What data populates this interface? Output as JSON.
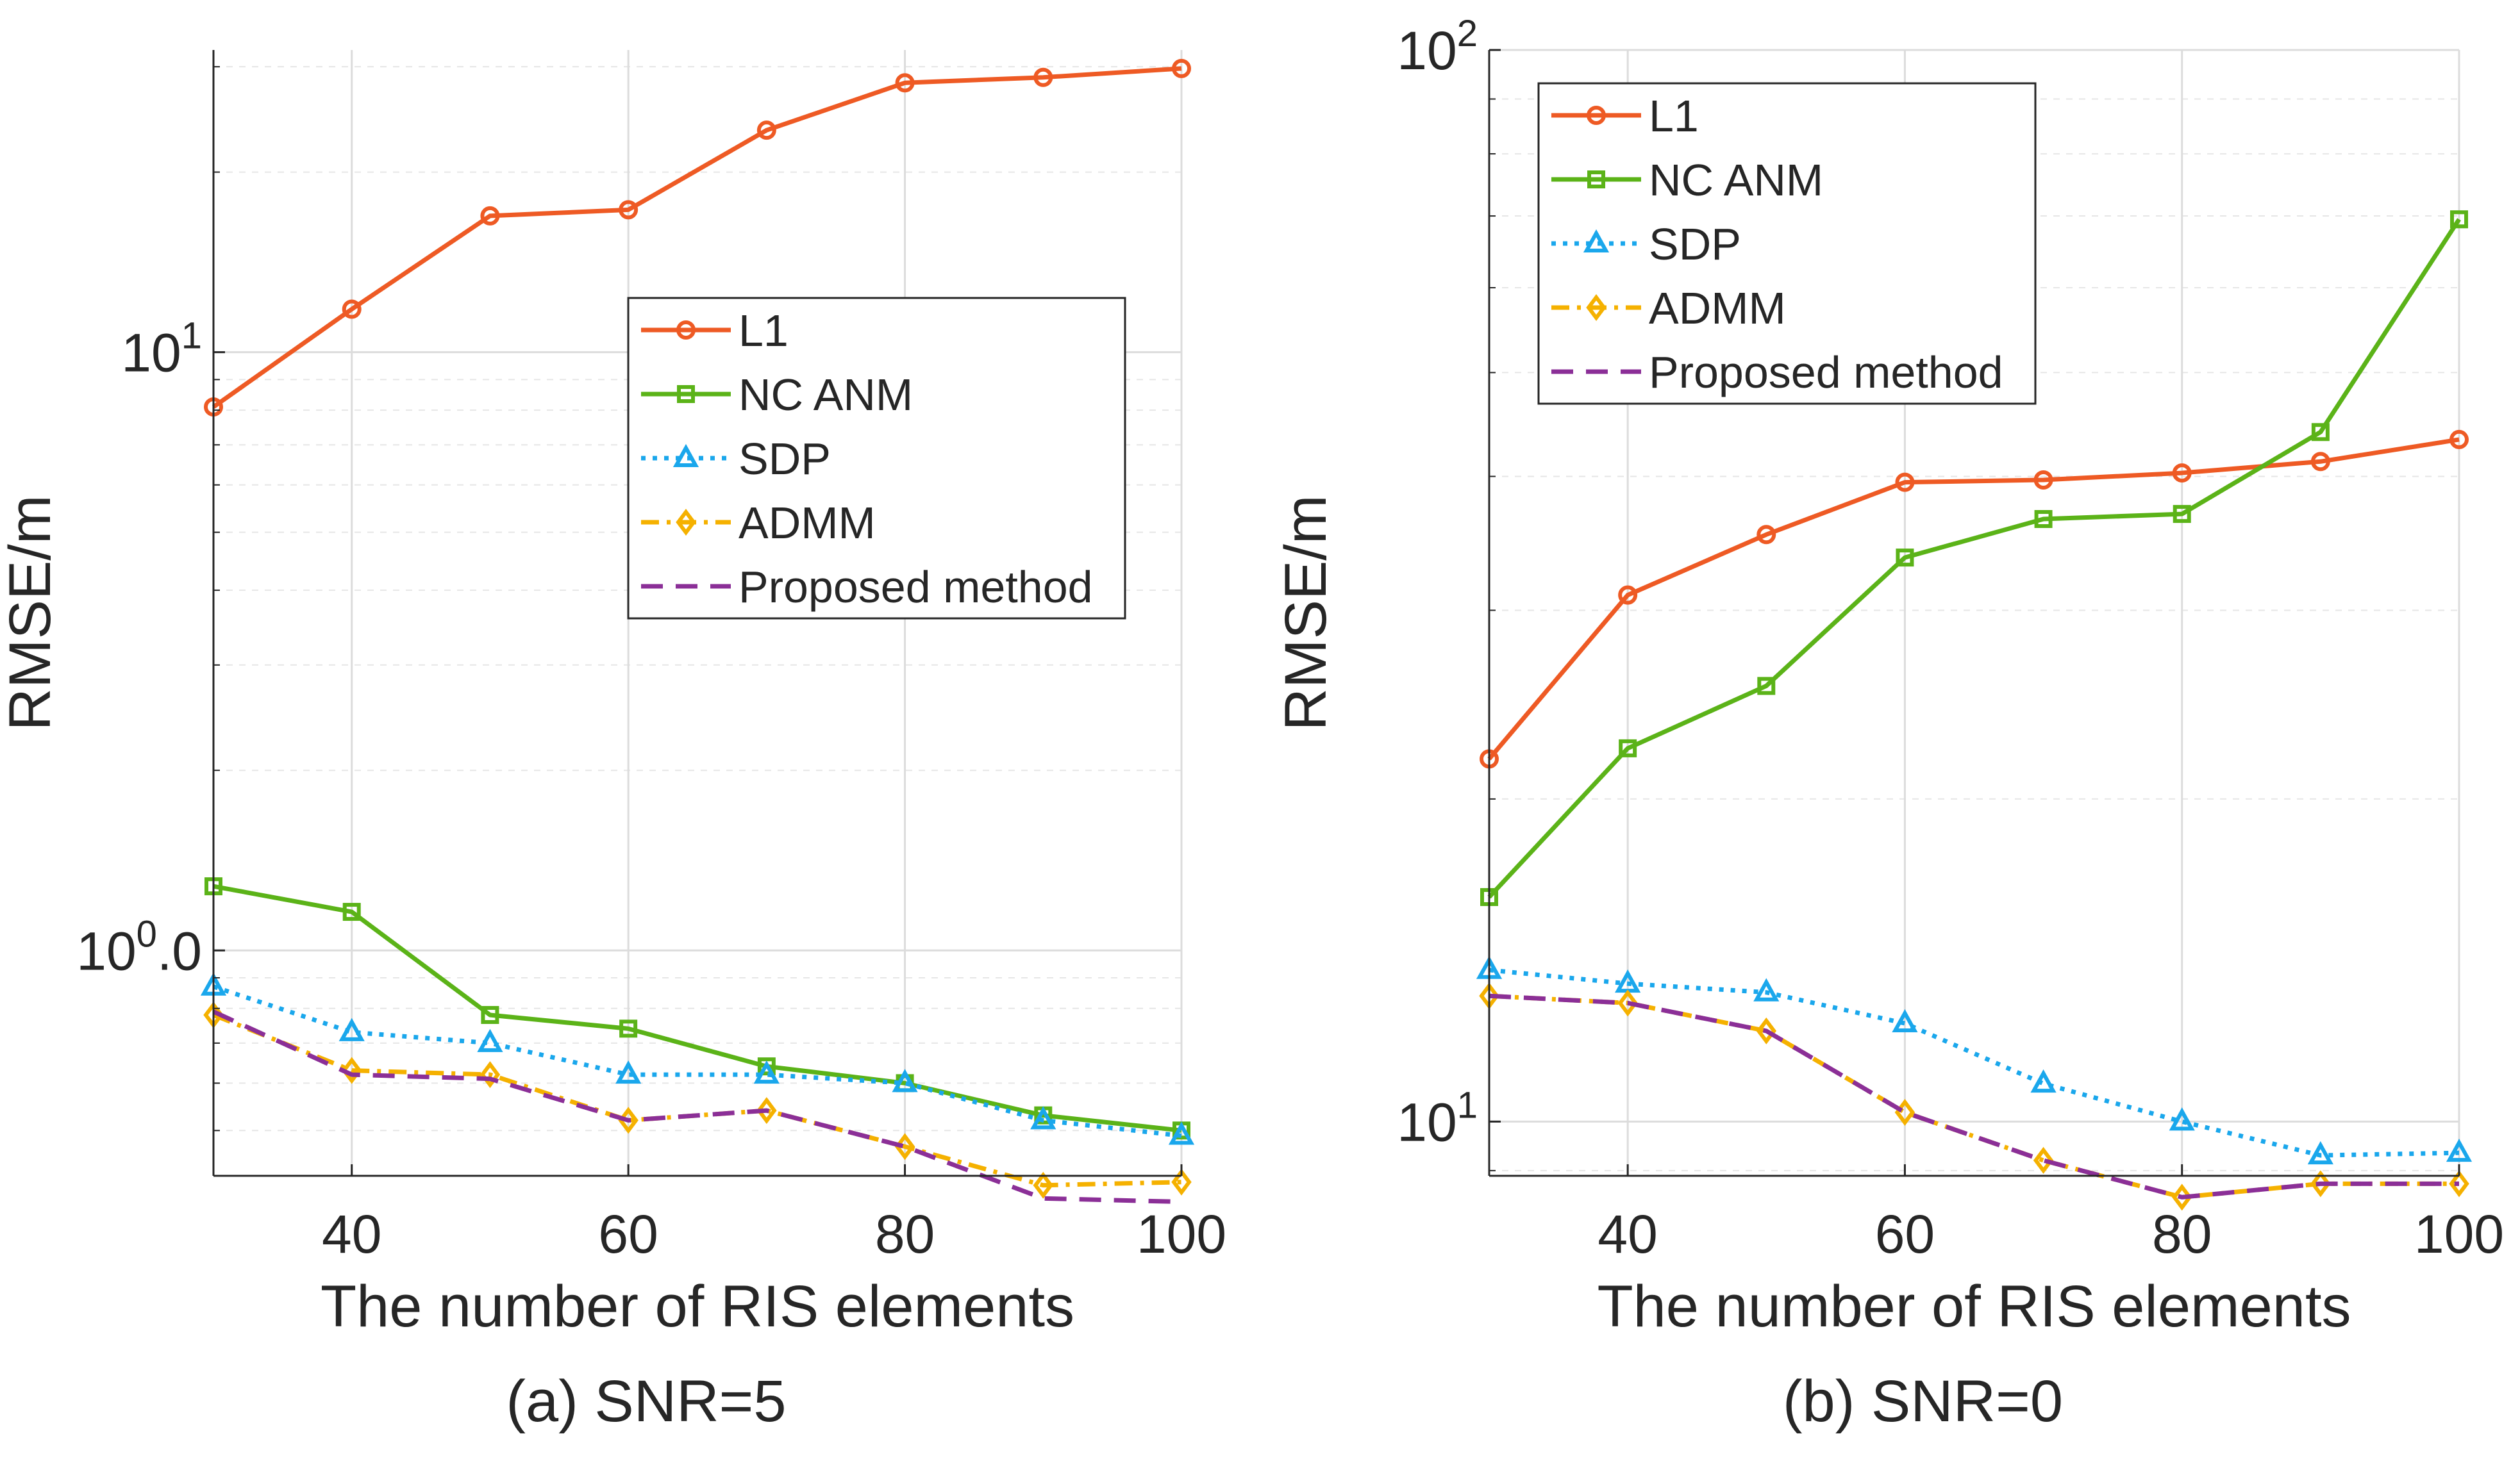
{
  "chart_data": [
    {
      "type": "line",
      "caption": "(a) SNR=5",
      "xlabel": "The number of RIS elements",
      "ylabel": "RMSE/m",
      "yscale": "log",
      "xlim": [
        30,
        100
      ],
      "ylim": [
        0.42,
        32
      ],
      "grid": true,
      "x_ticks": [
        40,
        60,
        80,
        100
      ],
      "x_tick_labels": [
        "40",
        "60",
        "80",
        "100"
      ],
      "y_major_ticks": [
        1,
        10
      ],
      "y_tick_labels": [
        {
          "base": "10",
          "exp": "0",
          "suffix": ".0"
        },
        {
          "base": "10",
          "exp": "1",
          "suffix": ""
        }
      ],
      "legend": {
        "position": "center-right"
      },
      "x": [
        30,
        40,
        50,
        60,
        70,
        80,
        90,
        100
      ],
      "series": [
        {
          "name": "L1",
          "color": "#EE5A24",
          "marker": "circle",
          "dash": "solid",
          "values": [
            8.1,
            11.8,
            16.9,
            17.3,
            23.5,
            28.2,
            28.8,
            29.8
          ]
        },
        {
          "name": "NC ANM",
          "color": "#5BB318",
          "marker": "square",
          "dash": "solid",
          "values": [
            1.28,
            1.16,
            0.78,
            0.74,
            0.64,
            0.6,
            0.53,
            0.5
          ]
        },
        {
          "name": "SDP",
          "color": "#1AA7EC",
          "marker": "triangle",
          "dash": "dotted",
          "values": [
            0.87,
            0.73,
            0.7,
            0.62,
            0.62,
            0.6,
            0.52,
            0.49
          ]
        },
        {
          "name": "ADMM",
          "color": "#F5B100",
          "marker": "diamond",
          "dash": "dashdot",
          "values": [
            0.78,
            0.63,
            0.62,
            0.52,
            0.54,
            0.47,
            0.405,
            0.41
          ]
        },
        {
          "name": "Proposed method",
          "color": "#8B2F97",
          "marker": "none",
          "dash": "dashed",
          "values": [
            0.79,
            0.62,
            0.61,
            0.52,
            0.54,
            0.47,
            0.385,
            0.38
          ]
        }
      ]
    },
    {
      "type": "line",
      "caption": "(b) SNR=0",
      "xlabel": "The number of RIS elements",
      "ylabel": "RMSE/m",
      "yscale": "log",
      "xlim": [
        30,
        100
      ],
      "ylim": [
        8.9,
        100
      ],
      "grid": true,
      "x_ticks": [
        40,
        60,
        80,
        100
      ],
      "x_tick_labels": [
        "40",
        "60",
        "80",
        "100"
      ],
      "y_major_ticks": [
        10,
        100
      ],
      "y_tick_labels": [
        {
          "base": "10",
          "exp": "1",
          "suffix": ""
        },
        {
          "base": "10",
          "exp": "2",
          "suffix": ""
        }
      ],
      "legend": {
        "position": "top-left"
      },
      "x": [
        30,
        40,
        50,
        60,
        70,
        80,
        90,
        100
      ],
      "series": [
        {
          "name": "L1",
          "color": "#EE5A24",
          "marker": "circle",
          "dash": "solid",
          "values": [
            21.8,
            31.0,
            35.3,
            39.5,
            39.7,
            40.3,
            41.3,
            43.3
          ]
        },
        {
          "name": "NC ANM",
          "color": "#5BB318",
          "marker": "square",
          "dash": "solid",
          "values": [
            16.2,
            22.3,
            25.5,
            33.6,
            36.5,
            36.9,
            44.0,
            69.5
          ]
        },
        {
          "name": "SDP",
          "color": "#1AA7EC",
          "marker": "triangle",
          "dash": "dotted",
          "values": [
            13.85,
            13.45,
            13.2,
            12.35,
            10.85,
            10.0,
            9.3,
            9.35
          ]
        },
        {
          "name": "ADMM",
          "color": "#F5B100",
          "marker": "diamond",
          "dash": "dashdot",
          "values": [
            13.1,
            12.9,
            12.15,
            10.2,
            9.2,
            8.5,
            8.75,
            8.75
          ]
        },
        {
          "name": "Proposed method",
          "color": "#8B2F97",
          "marker": "none",
          "dash": "dashed",
          "values": [
            13.1,
            12.9,
            12.15,
            10.2,
            9.2,
            8.5,
            8.75,
            8.75
          ]
        }
      ]
    }
  ]
}
